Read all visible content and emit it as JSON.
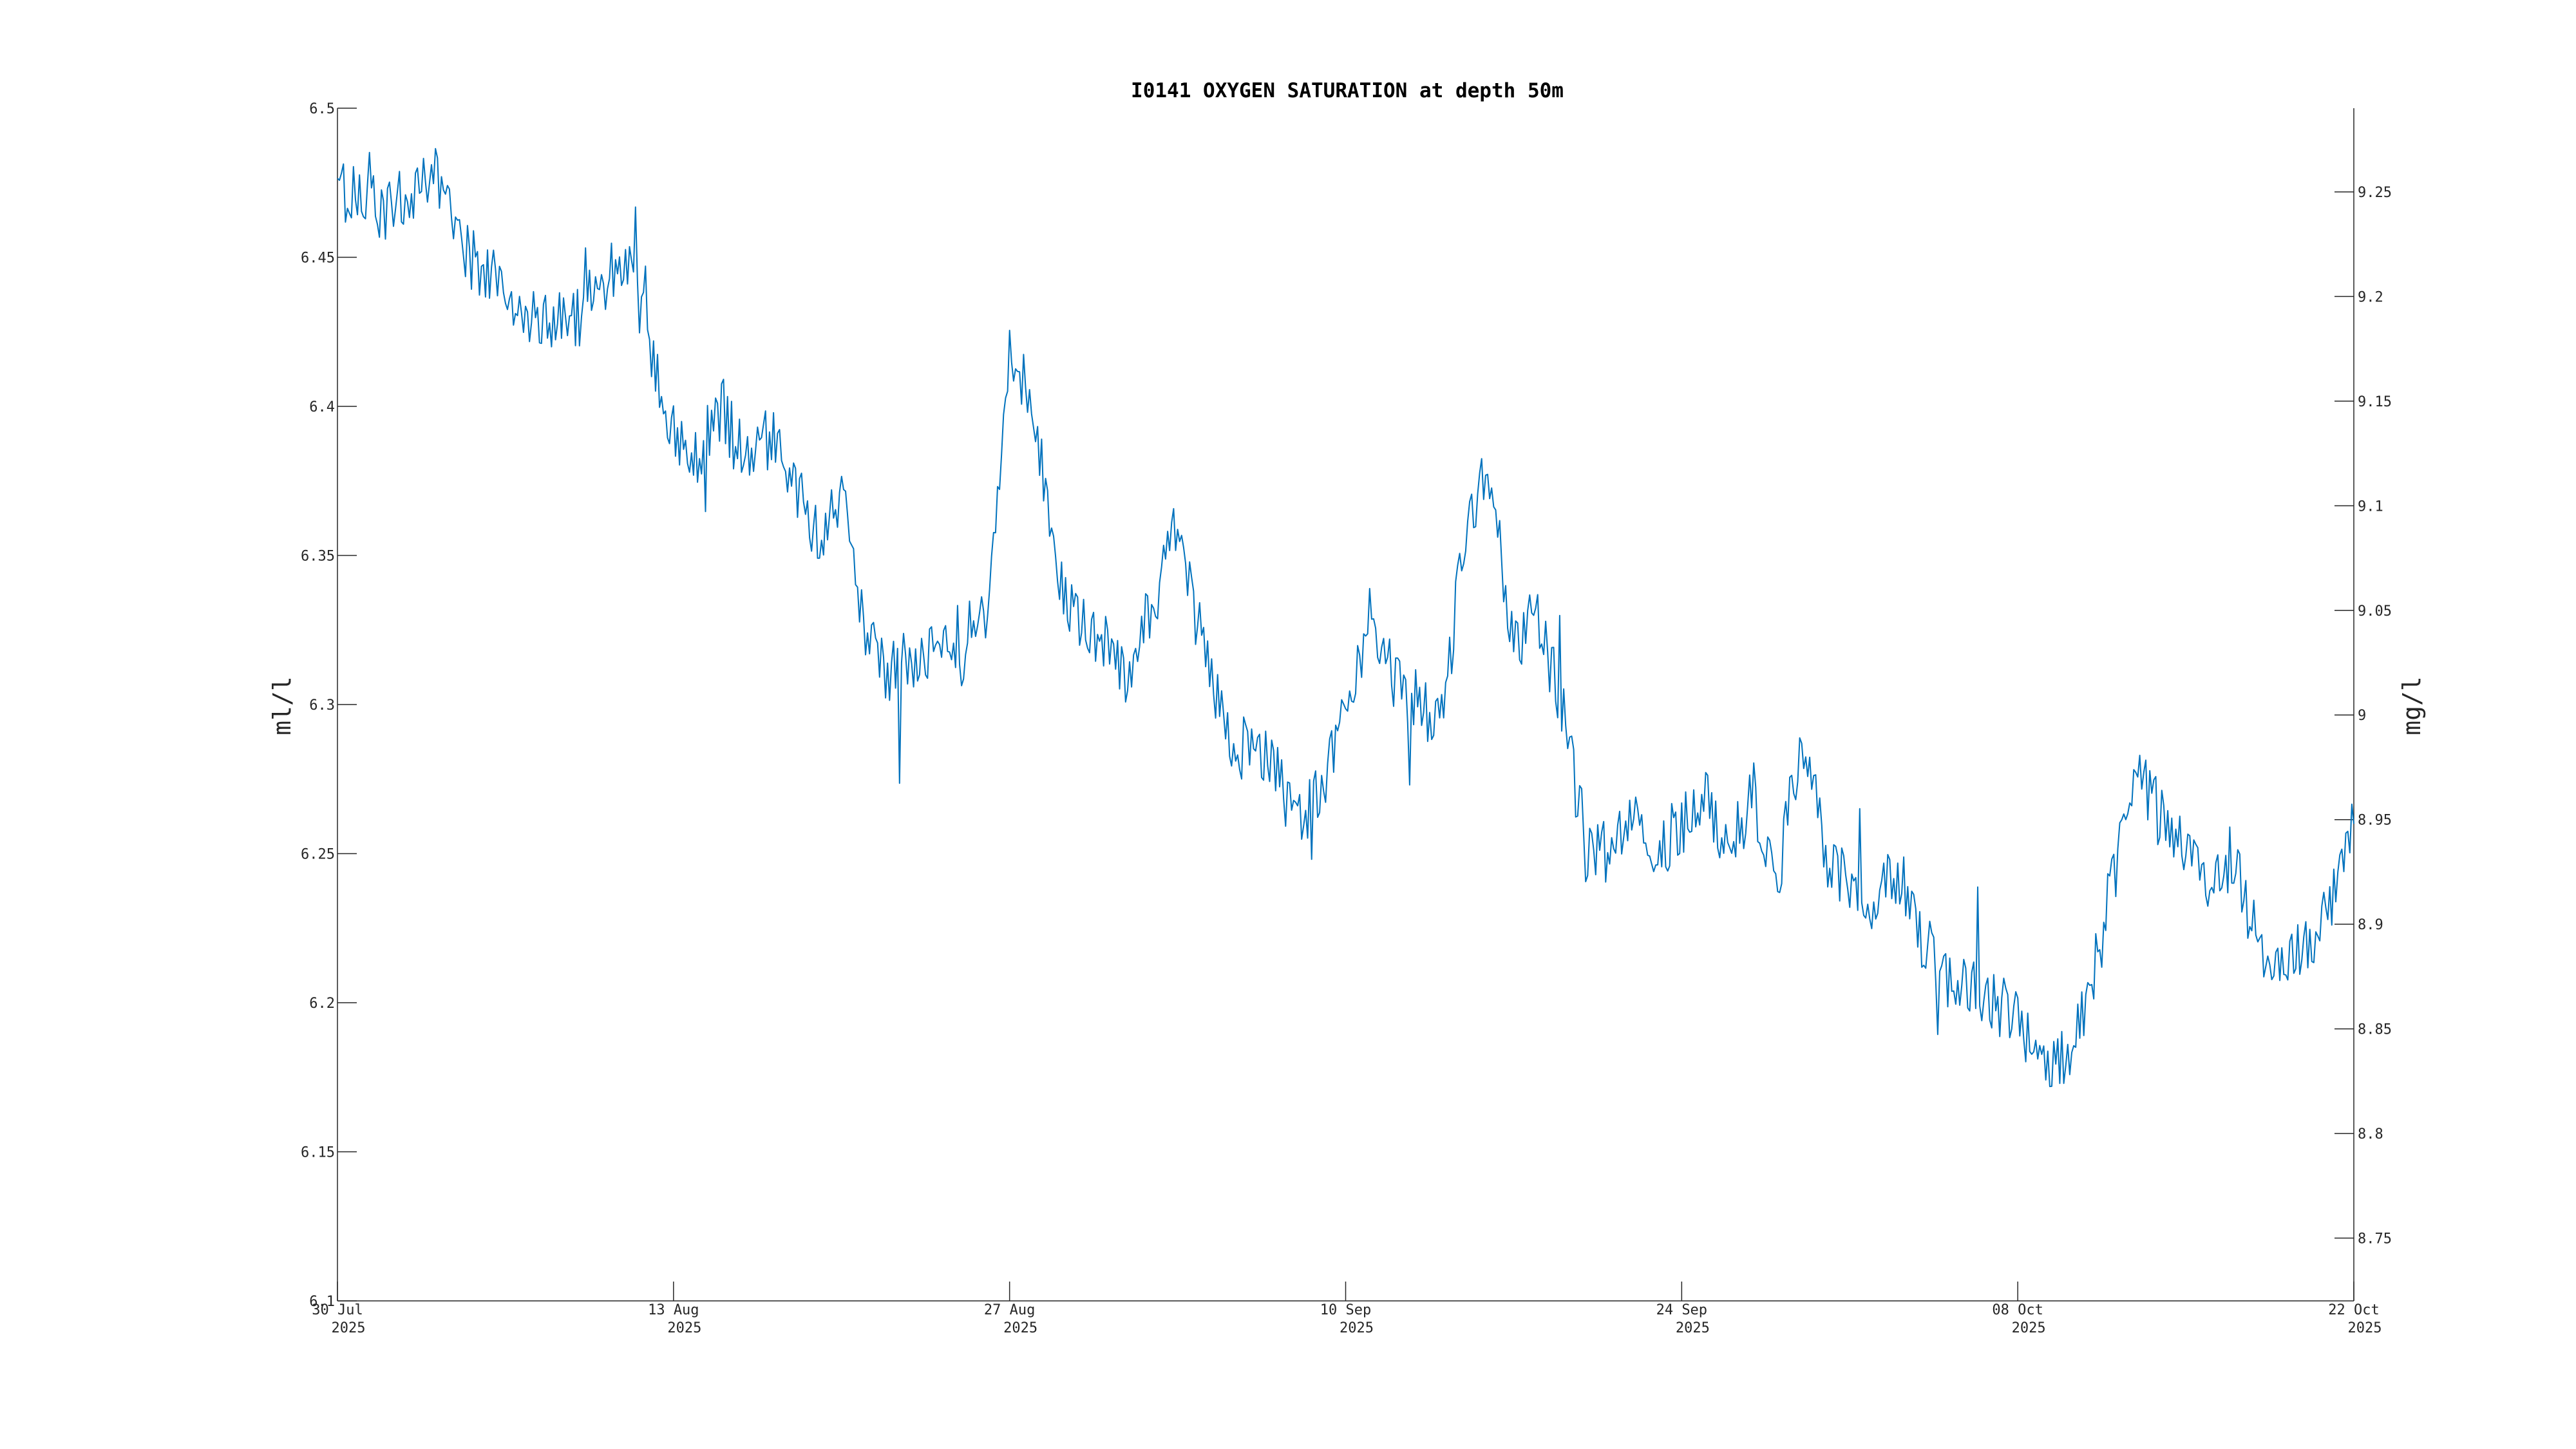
{
  "chart_data": {
    "type": "line",
    "title": "I0141 OXYGEN SATURATION at depth 50m",
    "xlabel": "",
    "ylabel": "ml/l",
    "ylabel_right": "mg/l",
    "grid": false,
    "legend": "none",
    "xlim": [
      "2025-07-30",
      "2025-10-22"
    ],
    "ylim": [
      6.1,
      6.5
    ],
    "ylim_right": [
      8.72,
      9.29
    ],
    "x_ticks": [
      {
        "date": "2025-07-30",
        "line1": "30 Jul",
        "line2": "2025"
      },
      {
        "date": "2025-08-13",
        "line1": "13 Aug",
        "line2": "2025"
      },
      {
        "date": "2025-08-27",
        "line1": "27 Aug",
        "line2": "2025"
      },
      {
        "date": "2025-09-10",
        "line1": "10 Sep",
        "line2": "2025"
      },
      {
        "date": "2025-09-24",
        "line1": "24 Sep",
        "line2": "2025"
      },
      {
        "date": "2025-10-08",
        "line1": "08 Oct",
        "line2": "2025"
      },
      {
        "date": "2025-10-22",
        "line1": "22 Oct",
        "line2": "2025"
      }
    ],
    "y_ticks_left": [
      "6.1",
      "6.15",
      "6.2",
      "6.25",
      "6.3",
      "6.35",
      "6.4",
      "6.45",
      "6.5"
    ],
    "y_ticks_right": [
      "8.75",
      "8.8",
      "8.85",
      "8.9",
      "8.95",
      "9",
      "9.05",
      "9.1",
      "9.15",
      "9.2",
      "9.25"
    ],
    "colors": {
      "series": "#0072bd",
      "axis": "#262626"
    },
    "series": [
      {
        "x": [
          "2025-07-30",
          "2025-07-31",
          "2025-08-01",
          "2025-08-02",
          "2025-08-03",
          "2025-08-04",
          "2025-08-05",
          "2025-08-06",
          "2025-08-07",
          "2025-08-08",
          "2025-08-09",
          "2025-08-10",
          "2025-08-11",
          "2025-08-12",
          "2025-08-13",
          "2025-08-14",
          "2025-08-15",
          "2025-08-16",
          "2025-08-17",
          "2025-08-18",
          "2025-08-19",
          "2025-08-20",
          "2025-08-21",
          "2025-08-22",
          "2025-08-23",
          "2025-08-24",
          "2025-08-25",
          "2025-08-26",
          "2025-08-27",
          "2025-08-28",
          "2025-08-29",
          "2025-08-30",
          "2025-08-31",
          "2025-09-01",
          "2025-09-02",
          "2025-09-03",
          "2025-09-04",
          "2025-09-05",
          "2025-09-06",
          "2025-09-07",
          "2025-09-08",
          "2025-09-09",
          "2025-09-10",
          "2025-09-11",
          "2025-09-12",
          "2025-09-13",
          "2025-09-14",
          "2025-09-15",
          "2025-09-16",
          "2025-09-17",
          "2025-09-18",
          "2025-09-19",
          "2025-09-20",
          "2025-09-21",
          "2025-09-22",
          "2025-09-23",
          "2025-09-24",
          "2025-09-25",
          "2025-09-26",
          "2025-09-27",
          "2025-09-28",
          "2025-09-29",
          "2025-09-30",
          "2025-10-01",
          "2025-10-02",
          "2025-10-03",
          "2025-10-04",
          "2025-10-05",
          "2025-10-06",
          "2025-10-07",
          "2025-10-08",
          "2025-10-09",
          "2025-10-10",
          "2025-10-11",
          "2025-10-12",
          "2025-10-13",
          "2025-10-14",
          "2025-10-15",
          "2025-10-16",
          "2025-10-17",
          "2025-10-18",
          "2025-10-19",
          "2025-10-20",
          "2025-10-21",
          "2025-10-22"
        ],
        "values": [
          6.47,
          6.475,
          6.465,
          6.47,
          6.478,
          6.455,
          6.445,
          6.44,
          6.43,
          6.428,
          6.43,
          6.44,
          6.45,
          6.42,
          6.39,
          6.385,
          6.4,
          6.38,
          6.39,
          6.375,
          6.355,
          6.37,
          6.32,
          6.31,
          6.315,
          6.32,
          6.31,
          6.33,
          6.42,
          6.4,
          6.34,
          6.33,
          6.32,
          6.31,
          6.335,
          6.36,
          6.32,
          6.29,
          6.285,
          6.28,
          6.26,
          6.27,
          6.3,
          6.33,
          6.31,
          6.3,
          6.29,
          6.36,
          6.38,
          6.32,
          6.33,
          6.3,
          6.25,
          6.25,
          6.27,
          6.25,
          6.26,
          6.27,
          6.25,
          6.27,
          6.24,
          6.29,
          6.25,
          6.24,
          6.23,
          6.245,
          6.22,
          6.21,
          6.205,
          6.2,
          6.195,
          6.18,
          6.18,
          6.2,
          6.25,
          6.28,
          6.26,
          6.25,
          6.24,
          6.25,
          6.22,
          6.21,
          6.22,
          6.23,
          6.26
        ]
      }
    ]
  }
}
